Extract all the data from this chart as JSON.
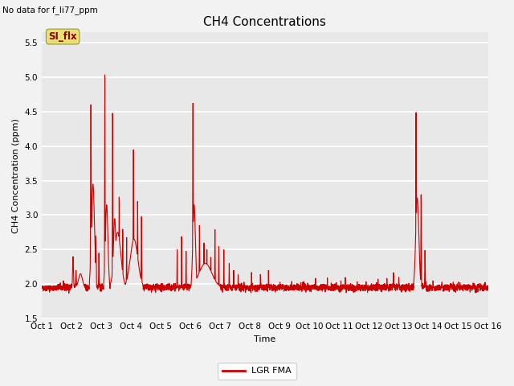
{
  "title": "CH4 Concentrations",
  "subtitle": "No data for f_li77_ppm",
  "xlabel": "Time",
  "ylabel": "CH4 Concentration (ppm)",
  "ylim": [
    1.5,
    5.65
  ],
  "yticks": [
    1.5,
    2.0,
    2.5,
    3.0,
    3.5,
    4.0,
    4.5,
    5.0,
    5.5
  ],
  "xlim": [
    0,
    15
  ],
  "xtick_labels": [
    "Oct 1",
    "Oct 2",
    "Oct 3",
    "Oct 4",
    "Oct 5",
    "Oct 6",
    "Oct 7",
    "Oct 8",
    "Oct 9",
    "Oct 10",
    "Oct 11",
    "Oct 12",
    "Oct 13",
    "Oct 14",
    "Oct 15",
    "Oct 16"
  ],
  "line_color": "#cc0000",
  "line_width": 0.8,
  "legend_label": "LGR FMA",
  "legend_line_color": "#cc0000",
  "si_flx_label": "SI_flx",
  "plot_bg_color": "#e8e8e8",
  "fig_bg_color": "#f2f2f2",
  "grid_color": "#ffffff",
  "annotation_box_color": "#e8e070",
  "annotation_text_color": "#8b0000",
  "title_fontsize": 11,
  "axis_label_fontsize": 8,
  "tick_fontsize": 7.5,
  "subtitle_fontsize": 7.5,
  "legend_fontsize": 8
}
